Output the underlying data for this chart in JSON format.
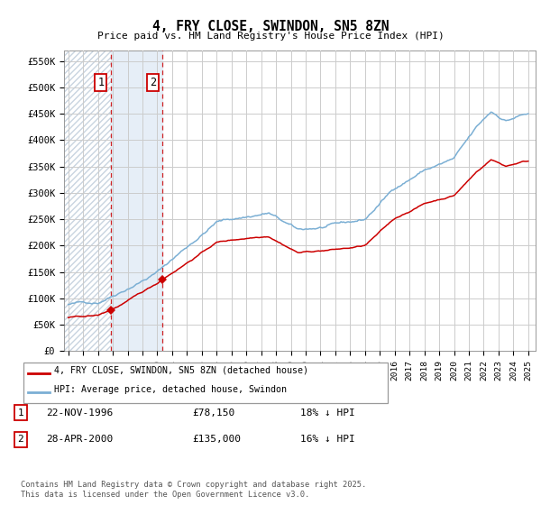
{
  "title": "4, FRY CLOSE, SWINDON, SN5 8ZN",
  "subtitle": "Price paid vs. HM Land Registry's House Price Index (HPI)",
  "ylabel_ticks": [
    "£0",
    "£50K",
    "£100K",
    "£150K",
    "£200K",
    "£250K",
    "£300K",
    "£350K",
    "£400K",
    "£450K",
    "£500K",
    "£550K"
  ],
  "ytick_values": [
    0,
    50000,
    100000,
    150000,
    200000,
    250000,
    300000,
    350000,
    400000,
    450000,
    500000,
    550000
  ],
  "ylim": [
    0,
    570000
  ],
  "sale1_x": 1996.89,
  "sale1_price": 78150,
  "sale1_hpi_at_sale": 95000,
  "sale2_x": 2000.33,
  "sale2_price": 135000,
  "sale2_hpi_at_sale": 160700,
  "sale1_date": "22-NOV-1996",
  "sale1_hpi_diff": "18% ↓ HPI",
  "sale2_date": "28-APR-2000",
  "sale2_hpi_diff": "16% ↓ HPI",
  "legend_label_red": "4, FRY CLOSE, SWINDON, SN5 8ZN (detached house)",
  "legend_label_blue": "HPI: Average price, detached house, Swindon",
  "footer": "Contains HM Land Registry data © Crown copyright and database right 2025.\nThis data is licensed under the Open Government Licence v3.0.",
  "red_color": "#cc0000",
  "blue_color": "#7bafd4",
  "vline_color": "#cc0000",
  "grid_color": "#cccccc",
  "hatch_region_end": 1996.89,
  "shade_region_start": 1996.89,
  "shade_region_end": 2000.33,
  "xlim_start": 1993.7,
  "xlim_end": 2025.5
}
